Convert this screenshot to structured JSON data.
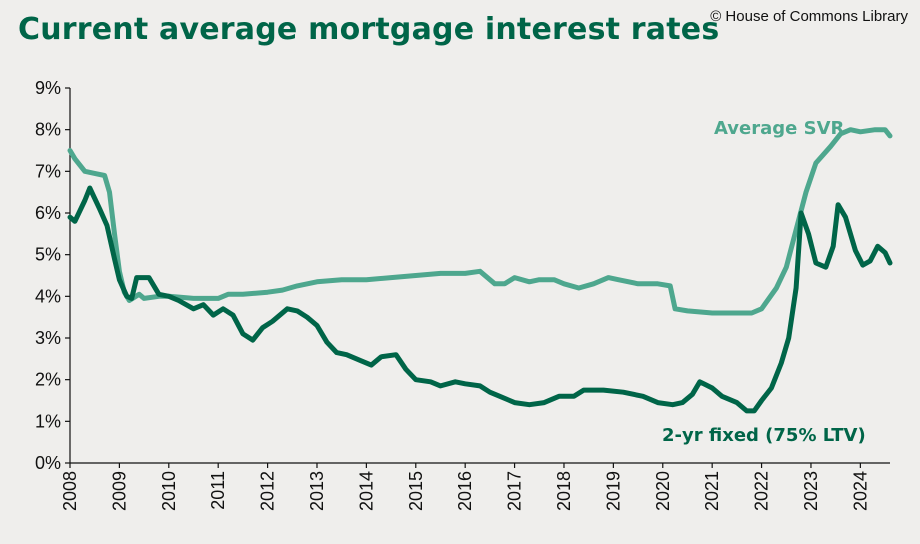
{
  "header": {
    "title": "Current average mortgage interest rates",
    "credit": "© House of Commons Library"
  },
  "colors": {
    "svr": "#4ea78e",
    "fixed": "#006548",
    "title": "#006548"
  },
  "chart_data": {
    "type": "line",
    "title": "Current average mortgage interest rates",
    "xlabel": "",
    "ylabel": "",
    "xlim": [
      2008,
      2024.6
    ],
    "ylim": [
      0,
      9
    ],
    "x_ticks": [
      "2008",
      "2009",
      "2010",
      "2011",
      "2012",
      "2013",
      "2014",
      "2015",
      "2016",
      "2017",
      "2018",
      "2019",
      "2020",
      "2021",
      "2022",
      "2023",
      "2024"
    ],
    "y_ticks": [
      "0%",
      "1%",
      "2%",
      "3%",
      "4%",
      "5%",
      "6%",
      "7%",
      "8%",
      "9%"
    ],
    "grid": false,
    "legend": "direct labels",
    "series": [
      {
        "name": "Average SVR",
        "color": "#4ea78e",
        "points": [
          [
            2008.0,
            7.5
          ],
          [
            2008.1,
            7.3
          ],
          [
            2008.3,
            7.0
          ],
          [
            2008.5,
            6.95
          ],
          [
            2008.7,
            6.9
          ],
          [
            2008.8,
            6.5
          ],
          [
            2008.9,
            5.5
          ],
          [
            2009.0,
            4.6
          ],
          [
            2009.1,
            4.1
          ],
          [
            2009.2,
            3.9
          ],
          [
            2009.4,
            4.05
          ],
          [
            2009.5,
            3.95
          ],
          [
            2009.8,
            4.0
          ],
          [
            2010.0,
            4.0
          ],
          [
            2010.5,
            3.95
          ],
          [
            2011.0,
            3.95
          ],
          [
            2011.2,
            4.05
          ],
          [
            2011.5,
            4.05
          ],
          [
            2012.0,
            4.1
          ],
          [
            2012.3,
            4.15
          ],
          [
            2012.6,
            4.25
          ],
          [
            2013.0,
            4.35
          ],
          [
            2013.5,
            4.4
          ],
          [
            2014.0,
            4.4
          ],
          [
            2014.5,
            4.45
          ],
          [
            2015.0,
            4.5
          ],
          [
            2015.5,
            4.55
          ],
          [
            2016.0,
            4.55
          ],
          [
            2016.3,
            4.6
          ],
          [
            2016.6,
            4.3
          ],
          [
            2016.8,
            4.3
          ],
          [
            2017.0,
            4.45
          ],
          [
            2017.3,
            4.35
          ],
          [
            2017.5,
            4.4
          ],
          [
            2017.8,
            4.4
          ],
          [
            2018.0,
            4.3
          ],
          [
            2018.3,
            4.2
          ],
          [
            2018.6,
            4.3
          ],
          [
            2018.9,
            4.45
          ],
          [
            2019.1,
            4.4
          ],
          [
            2019.5,
            4.3
          ],
          [
            2019.9,
            4.3
          ],
          [
            2020.15,
            4.25
          ],
          [
            2020.25,
            3.7
          ],
          [
            2020.5,
            3.65
          ],
          [
            2021.0,
            3.6
          ],
          [
            2021.5,
            3.6
          ],
          [
            2021.8,
            3.6
          ],
          [
            2022.0,
            3.7
          ],
          [
            2022.3,
            4.2
          ],
          [
            2022.5,
            4.7
          ],
          [
            2022.7,
            5.6
          ],
          [
            2022.9,
            6.5
          ],
          [
            2023.1,
            7.2
          ],
          [
            2023.4,
            7.6
          ],
          [
            2023.6,
            7.9
          ],
          [
            2023.8,
            8.0
          ],
          [
            2024.0,
            7.95
          ],
          [
            2024.3,
            8.0
          ],
          [
            2024.5,
            8.0
          ],
          [
            2024.6,
            7.85
          ]
        ]
      },
      {
        "name": "2-yr fixed (75% LTV)",
        "color": "#006548",
        "points": [
          [
            2008.0,
            5.9
          ],
          [
            2008.1,
            5.8
          ],
          [
            2008.3,
            6.3
          ],
          [
            2008.4,
            6.6
          ],
          [
            2008.6,
            6.1
          ],
          [
            2008.75,
            5.7
          ],
          [
            2008.9,
            4.9
          ],
          [
            2009.0,
            4.4
          ],
          [
            2009.15,
            4.0
          ],
          [
            2009.25,
            3.95
          ],
          [
            2009.35,
            4.45
          ],
          [
            2009.6,
            4.45
          ],
          [
            2009.8,
            4.05
          ],
          [
            2010.0,
            4.0
          ],
          [
            2010.2,
            3.9
          ],
          [
            2010.5,
            3.7
          ],
          [
            2010.7,
            3.8
          ],
          [
            2010.9,
            3.55
          ],
          [
            2011.1,
            3.7
          ],
          [
            2011.3,
            3.55
          ],
          [
            2011.5,
            3.1
          ],
          [
            2011.7,
            2.95
          ],
          [
            2011.9,
            3.25
          ],
          [
            2012.1,
            3.4
          ],
          [
            2012.4,
            3.7
          ],
          [
            2012.6,
            3.65
          ],
          [
            2012.8,
            3.5
          ],
          [
            2013.0,
            3.3
          ],
          [
            2013.2,
            2.9
          ],
          [
            2013.4,
            2.65
          ],
          [
            2013.6,
            2.6
          ],
          [
            2013.9,
            2.45
          ],
          [
            2014.1,
            2.35
          ],
          [
            2014.3,
            2.55
          ],
          [
            2014.6,
            2.6
          ],
          [
            2014.8,
            2.25
          ],
          [
            2015.0,
            2.0
          ],
          [
            2015.3,
            1.95
          ],
          [
            2015.5,
            1.85
          ],
          [
            2015.8,
            1.95
          ],
          [
            2016.0,
            1.9
          ],
          [
            2016.3,
            1.85
          ],
          [
            2016.5,
            1.7
          ],
          [
            2016.7,
            1.6
          ],
          [
            2017.0,
            1.45
          ],
          [
            2017.3,
            1.4
          ],
          [
            2017.6,
            1.45
          ],
          [
            2017.9,
            1.6
          ],
          [
            2018.2,
            1.6
          ],
          [
            2018.4,
            1.75
          ],
          [
            2018.8,
            1.75
          ],
          [
            2019.2,
            1.7
          ],
          [
            2019.6,
            1.6
          ],
          [
            2019.9,
            1.45
          ],
          [
            2020.2,
            1.4
          ],
          [
            2020.4,
            1.45
          ],
          [
            2020.6,
            1.65
          ],
          [
            2020.75,
            1.95
          ],
          [
            2021.0,
            1.8
          ],
          [
            2021.2,
            1.6
          ],
          [
            2021.5,
            1.45
          ],
          [
            2021.7,
            1.25
          ],
          [
            2021.85,
            1.25
          ],
          [
            2022.0,
            1.5
          ],
          [
            2022.2,
            1.8
          ],
          [
            2022.4,
            2.4
          ],
          [
            2022.55,
            3.0
          ],
          [
            2022.7,
            4.2
          ],
          [
            2022.8,
            6.0
          ],
          [
            2022.95,
            5.5
          ],
          [
            2023.1,
            4.8
          ],
          [
            2023.3,
            4.7
          ],
          [
            2023.45,
            5.2
          ],
          [
            2023.55,
            6.2
          ],
          [
            2023.7,
            5.9
          ],
          [
            2023.9,
            5.1
          ],
          [
            2024.05,
            4.75
          ],
          [
            2024.2,
            4.85
          ],
          [
            2024.35,
            5.2
          ],
          [
            2024.5,
            5.05
          ],
          [
            2024.6,
            4.8
          ]
        ]
      }
    ]
  }
}
